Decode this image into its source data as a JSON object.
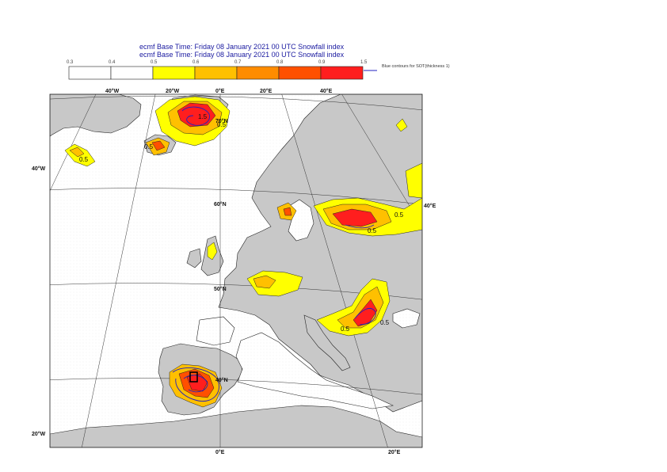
{
  "title": {
    "line1": "ecmf  Base Time: Friday 08 January 2021 00 UTC Snowfall index",
    "line2": "ecmf  Base Time: Friday 08 January 2021 00 UTC Snowfall index"
  },
  "legend": {
    "ticks": [
      "0.3",
      "0.4",
      "0.5",
      "0.6",
      "0.7",
      "0.8",
      "0.9",
      "1.5"
    ],
    "colors": [
      "#ffffff",
      "#ffffff",
      "#ffff00",
      "#ffc000",
      "#ff8c00",
      "#ff5000",
      "#ff1e1e"
    ],
    "sot_label": "Blue contours for SOT(thickness 1)",
    "sot_color": "#2020c0"
  },
  "map": {
    "land_color": "#c8c8c8",
    "sea_color": "#ffffff",
    "coord_labels": {
      "lon_40w": "40°W",
      "lon_20w": "20°W",
      "lon_0": "0°E",
      "lon_20e_top": "20°E",
      "lon_40e_top": "40°E",
      "lat_40w": "40°W",
      "lat_60n": "60°N",
      "lat_50n": "50°N",
      "lat_40n": "40°N",
      "lat_70n": "70°N",
      "lon_40e_right": "40°E",
      "lat_20w_left": "20°W",
      "lon_0_bottom": "0°E",
      "lon_20e_bottom": "20°E"
    },
    "contour_labels": [
      "0.5",
      "0.5",
      "0.5",
      "0.5",
      "0.5",
      "0.5",
      "1.5",
      "0.5"
    ]
  }
}
